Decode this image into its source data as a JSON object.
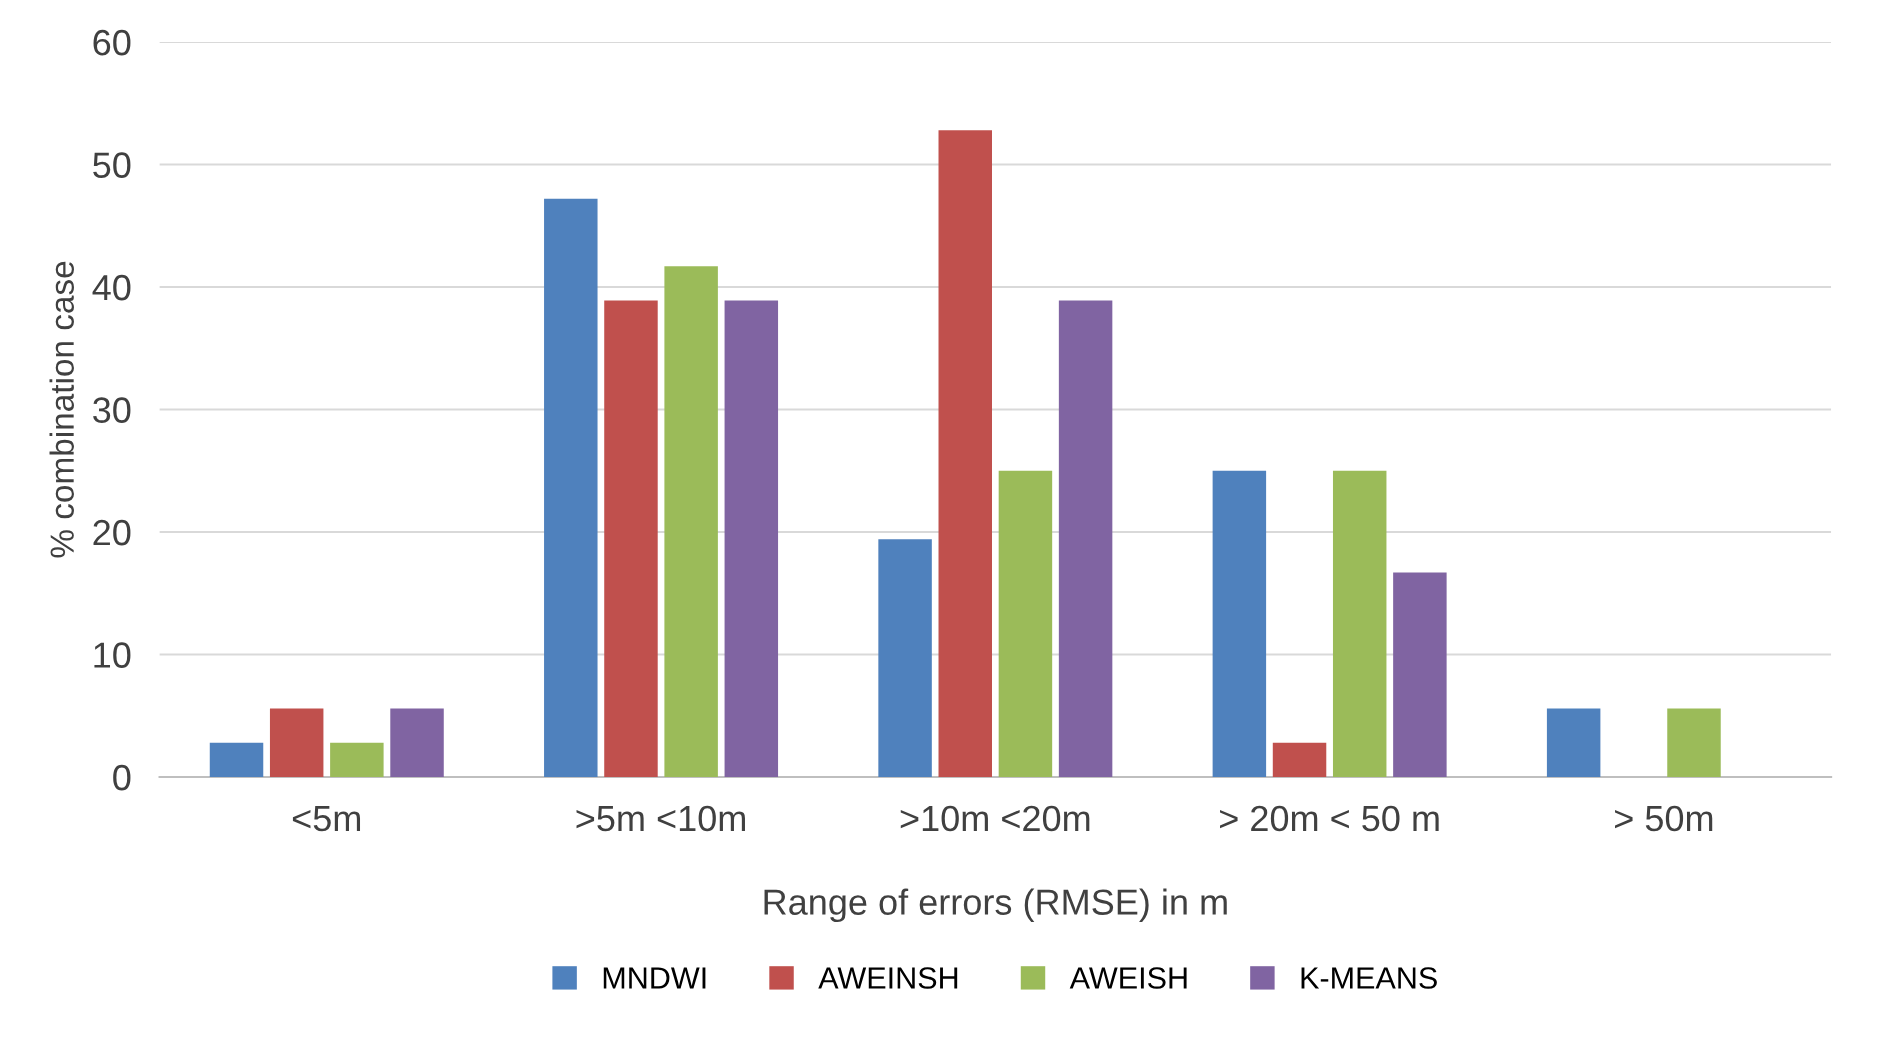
{
  "chart_data": {
    "type": "bar",
    "categories": [
      "<5m",
      ">5m <10m",
      ">10m <20m",
      "> 20m < 50 m",
      "> 50m"
    ],
    "series": [
      {
        "name": "MNDWI",
        "color": "#4f81bd",
        "values": [
          2.8,
          47.2,
          19.4,
          25,
          5.6
        ]
      },
      {
        "name": "AWEINSH",
        "color": "#c0504d",
        "values": [
          5.6,
          38.9,
          52.8,
          2.8,
          null
        ]
      },
      {
        "name": "AWEISH",
        "color": "#9bbb59",
        "values": [
          2.8,
          41.7,
          25,
          25,
          5.6
        ]
      },
      {
        "name": "K-MEANS",
        "color": "#8064a2",
        "values": [
          5.6,
          38.9,
          38.9,
          16.7,
          null
        ]
      }
    ],
    "xlabel": "Range of errors (RMSE) in m",
    "ylabel": "% combination case",
    "ylim": [
      0,
      60
    ],
    "yticks": [
      0,
      10,
      20,
      30,
      40,
      50,
      60
    ],
    "grid": "y",
    "legend": "bottom"
  }
}
